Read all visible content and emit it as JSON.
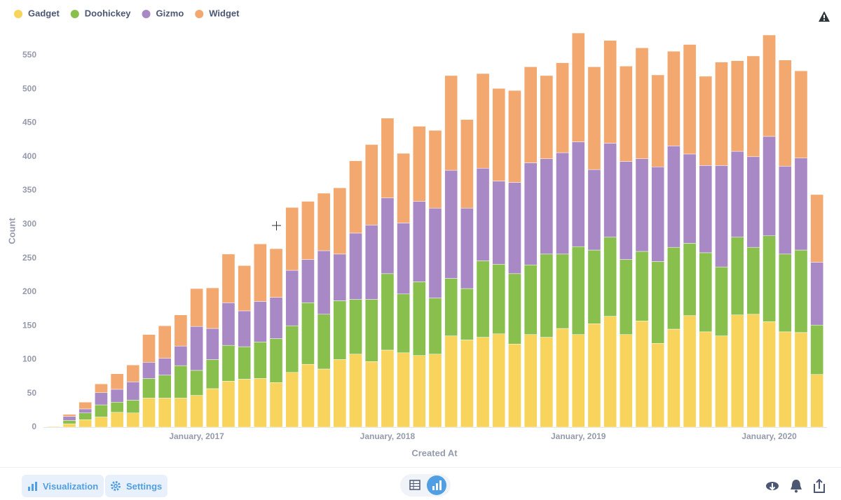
{
  "chart_data": {
    "type": "stacked_bar",
    "x_label": "Created At",
    "y_label": "Count",
    "categories": [
      null,
      null,
      null,
      null,
      null,
      null,
      null,
      null,
      null,
      "January, 2017",
      null,
      null,
      null,
      null,
      null,
      null,
      null,
      null,
      null,
      null,
      null,
      "January, 2018",
      null,
      null,
      null,
      null,
      null,
      null,
      null,
      null,
      null,
      null,
      null,
      "January, 2019",
      null,
      null,
      null,
      null,
      null,
      null,
      null,
      null,
      null,
      null,
      null,
      "January, 2020",
      null,
      null,
      null
    ],
    "series": [
      {
        "name": "Gadget",
        "color": "#f9d45c",
        "values": [
          1,
          5,
          11,
          15,
          22,
          21,
          43,
          43,
          43,
          47,
          57,
          68,
          71,
          72,
          66,
          81,
          93,
          86,
          100,
          108,
          97,
          114,
          110,
          106,
          108,
          135,
          129,
          133,
          138,
          123,
          137,
          133,
          146,
          137,
          153,
          164,
          137,
          157,
          124,
          145,
          165,
          141,
          135,
          166,
          167,
          156,
          141,
          140,
          78
        ]
      },
      {
        "name": "Doohickey",
        "color": "#88bf4d",
        "values": [
          0,
          5,
          10,
          18,
          15,
          19,
          29,
          34,
          48,
          37,
          43,
          53,
          48,
          54,
          65,
          69,
          91,
          81,
          87,
          81,
          92,
          113,
          87,
          109,
          83,
          85,
          76,
          113,
          103,
          104,
          103,
          123,
          110,
          130,
          109,
          117,
          111,
          103,
          121,
          121,
          107,
          117,
          102,
          115,
          99,
          127,
          115,
          122,
          73
        ]
      },
      {
        "name": "Gizmo",
        "color": "#a989c5",
        "values": [
          0,
          6,
          6,
          18,
          19,
          27,
          24,
          25,
          29,
          65,
          46,
          63,
          53,
          60,
          61,
          82,
          64,
          94,
          69,
          98,
          110,
          112,
          105,
          119,
          133,
          160,
          119,
          137,
          123,
          135,
          151,
          141,
          150,
          155,
          119,
          139,
          145,
          137,
          140,
          150,
          132,
          129,
          150,
          127,
          134,
          147,
          130,
          136,
          93
        ]
      },
      {
        "name": "Widget",
        "color": "#f2a86f",
        "values": [
          0,
          3,
          10,
          13,
          23,
          25,
          41,
          48,
          46,
          56,
          60,
          72,
          67,
          85,
          72,
          93,
          86,
          85,
          98,
          107,
          119,
          118,
          103,
          111,
          115,
          140,
          131,
          140,
          137,
          136,
          142,
          123,
          133,
          161,
          152,
          152,
          141,
          164,
          136,
          140,
          162,
          132,
          153,
          134,
          149,
          150,
          157,
          129,
          100
        ]
      }
    ],
    "ylim": [
      0,
      580
    ],
    "yticks": [
      0,
      50,
      100,
      150,
      200,
      250,
      300,
      350,
      400,
      450,
      500,
      550
    ],
    "grid": false,
    "legend": "top-left"
  },
  "footer": {
    "buttons": [
      "Visualization",
      "Settings"
    ]
  }
}
